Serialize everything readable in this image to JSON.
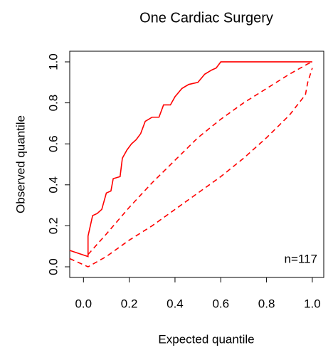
{
  "chart_data": {
    "type": "line",
    "title": "One Cardiac Surgery",
    "x_label": "Expected quantile",
    "y_label": "Observed quantile",
    "annotation": "n=117",
    "xlim": [
      -0.06,
      1.05
    ],
    "ylim": [
      -0.052,
      1.052
    ],
    "xticks": [
      {
        "value": 0,
        "label": "0.0"
      },
      0.2,
      0.4,
      0.6,
      0.8,
      {
        "value": 1,
        "label": "1.0"
      }
    ],
    "yticks": [
      {
        "value": 0,
        "label": "0.0"
      },
      0.2,
      0.4,
      0.6,
      0.8,
      {
        "value": 1,
        "label": "1.0"
      }
    ],
    "series": [
      {
        "color": "#ff0000",
        "dash": false,
        "x": [
          -0.06,
          0.02,
          0.02,
          0.04,
          0.06,
          0.08,
          0.1,
          0.12,
          0.13,
          0.16,
          0.17,
          0.19,
          0.21,
          0.23,
          0.25,
          0.27,
          0.3,
          0.33,
          0.35,
          0.38,
          0.4,
          0.43,
          0.46,
          0.5,
          0.53,
          0.56,
          0.58,
          0.6,
          1.0
        ],
        "values": [
          0.08,
          0.05,
          0.15,
          0.25,
          0.26,
          0.28,
          0.36,
          0.37,
          0.43,
          0.44,
          0.53,
          0.57,
          0.6,
          0.62,
          0.65,
          0.71,
          0.73,
          0.73,
          0.79,
          0.79,
          0.83,
          0.87,
          0.89,
          0.9,
          0.94,
          0.96,
          0.97,
          1.0,
          1.0
        ]
      },
      {
        "color": "#ff0000",
        "dash": true,
        "x": [
          0.02,
          0.1,
          0.2,
          0.3,
          0.4,
          0.5,
          0.6,
          0.7,
          0.8,
          0.9,
          0.98,
          1.0
        ],
        "values": [
          0.06,
          0.16,
          0.29,
          0.41,
          0.52,
          0.63,
          0.72,
          0.8,
          0.87,
          0.94,
          0.99,
          1.0
        ]
      },
      {
        "color": "#ff0000",
        "dash": true,
        "x": [
          -0.06,
          0.02,
          0.1,
          0.2,
          0.3,
          0.4,
          0.5,
          0.6,
          0.7,
          0.8,
          0.9,
          0.97,
          0.98,
          1.0
        ],
        "values": [
          0.04,
          0.0,
          0.05,
          0.13,
          0.2,
          0.28,
          0.36,
          0.44,
          0.53,
          0.63,
          0.74,
          0.84,
          0.9,
          0.97
        ]
      }
    ]
  }
}
